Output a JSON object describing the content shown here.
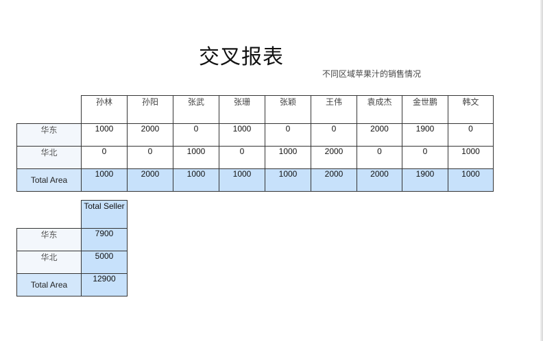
{
  "report": {
    "title": "交叉报表",
    "subtitle": "不同区域苹果汁的销售情况"
  },
  "cross_table": {
    "sellers": [
      "孙林",
      "孙阳",
      "张武",
      "张珊",
      "张颖",
      "王伟",
      "袁成杰",
      "金世鹏",
      "韩文"
    ],
    "rows": [
      {
        "label": "华东",
        "values": [
          "1000",
          "2000",
          "0",
          "1000",
          "0",
          "0",
          "2000",
          "1900",
          "0"
        ]
      },
      {
        "label": "华北",
        "values": [
          "0",
          "0",
          "1000",
          "0",
          "1000",
          "2000",
          "0",
          "0",
          "1000"
        ]
      }
    ],
    "total": {
      "label": "Total Area",
      "values": [
        "1000",
        "2000",
        "1000",
        "1000",
        "1000",
        "2000",
        "2000",
        "1900",
        "1000"
      ]
    }
  },
  "summary_table": {
    "header": "Total Seller",
    "rows": [
      {
        "label": "华东",
        "value": "7900"
      },
      {
        "label": "华北",
        "value": "5000"
      }
    ],
    "total": {
      "label": "Total Area",
      "value": "12900"
    }
  },
  "colors": {
    "total_fill": "#c7e1fb",
    "row_label_fill": "#f3f7fc",
    "border": "#333333"
  }
}
